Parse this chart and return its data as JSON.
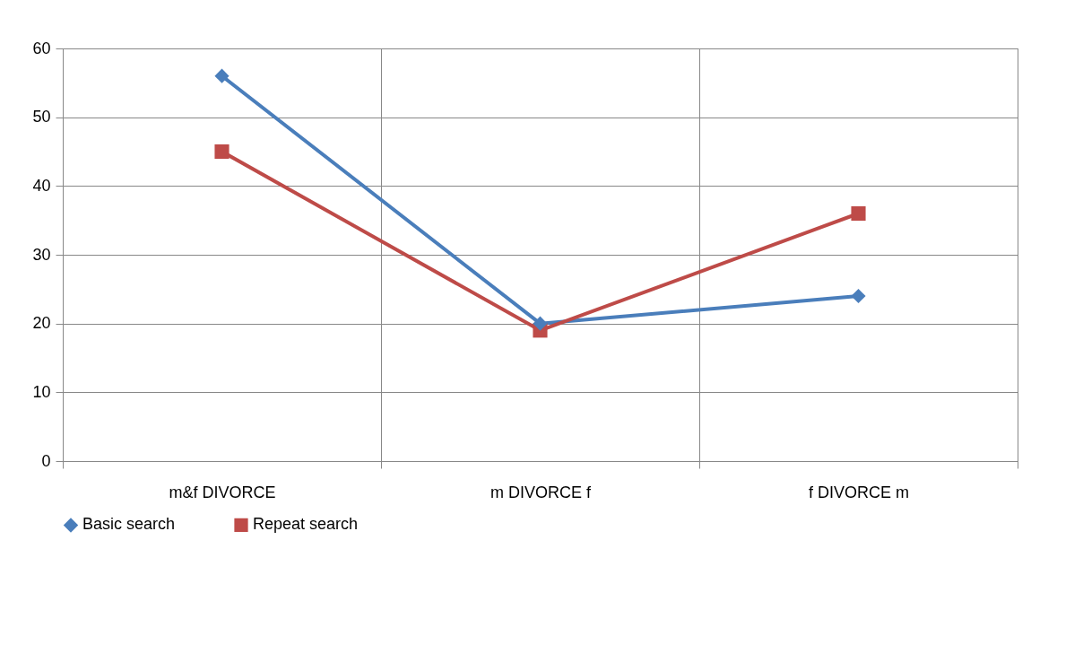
{
  "chart_data": {
    "type": "line",
    "categories": [
      "m&f DIVORCE",
      "m DIVORCE f",
      "f DIVORCE m"
    ],
    "series": [
      {
        "name": "Basic search",
        "color": "#4a7ebb",
        "marker": "diamond",
        "values": [
          56,
          20,
          24
        ]
      },
      {
        "name": "Repeat search",
        "color": "#be4b48",
        "marker": "square",
        "values": [
          45,
          19,
          36
        ]
      }
    ],
    "ylim": [
      0,
      60
    ],
    "yticks": [
      0,
      10,
      20,
      30,
      40,
      50,
      60
    ],
    "grid": true,
    "legend": "bottom"
  }
}
